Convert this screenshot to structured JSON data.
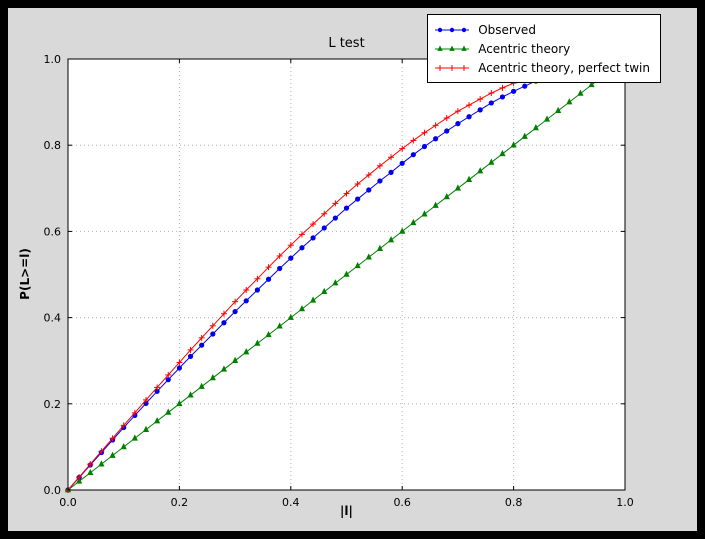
{
  "window": {
    "background": "#000000"
  },
  "chart_data": {
    "type": "line",
    "title": "L test",
    "xlabel": "|l|",
    "ylabel": "P(L>=l)",
    "xlim": [
      0.0,
      1.0
    ],
    "ylim": [
      0.0,
      1.0
    ],
    "grid": true,
    "grid_style": "dotted",
    "legend_position": "upper right",
    "colors": {
      "figure_bg": "#d9d9d9",
      "axes_bg": "#ffffff",
      "grid": "#b3b3b3",
      "spine": "#000000"
    },
    "xticks": {
      "values": [
        0.0,
        0.2,
        0.4,
        0.6,
        0.8,
        1.0
      ],
      "labels": [
        "0.0",
        "0.2",
        "0.4",
        "0.6",
        "0.8",
        "1.0"
      ]
    },
    "yticks": {
      "values": [
        0.0,
        0.2,
        0.4,
        0.6,
        0.8,
        1.0
      ],
      "labels": [
        "0.0",
        "0.2",
        "0.4",
        "0.6",
        "0.8",
        "1.0"
      ]
    },
    "series": [
      {
        "name": "Observed",
        "color": "#0000ee",
        "marker": "circle",
        "x": [
          0.0,
          0.02,
          0.04,
          0.06,
          0.08,
          0.1,
          0.12,
          0.14,
          0.16,
          0.18,
          0.2,
          0.22,
          0.24,
          0.26,
          0.28,
          0.3,
          0.32,
          0.34,
          0.36,
          0.38,
          0.4,
          0.42,
          0.44,
          0.46,
          0.48,
          0.5,
          0.52,
          0.54,
          0.56,
          0.58,
          0.6,
          0.62,
          0.64,
          0.66,
          0.68,
          0.7,
          0.72,
          0.74,
          0.76,
          0.78,
          0.8,
          0.82,
          0.84,
          0.86
        ],
        "y": [
          0.0,
          0.029,
          0.058,
          0.087,
          0.116,
          0.145,
          0.173,
          0.201,
          0.229,
          0.256,
          0.283,
          0.31,
          0.336,
          0.362,
          0.388,
          0.414,
          0.439,
          0.464,
          0.489,
          0.514,
          0.538,
          0.562,
          0.585,
          0.608,
          0.631,
          0.654,
          0.675,
          0.696,
          0.717,
          0.737,
          0.758,
          0.778,
          0.797,
          0.815,
          0.833,
          0.85,
          0.866,
          0.882,
          0.898,
          0.912,
          0.925,
          0.937,
          0.949,
          0.959
        ]
      },
      {
        "name": "Acentric theory",
        "color": "#008000",
        "marker": "triangle",
        "x": [
          0.0,
          0.02,
          0.04,
          0.06,
          0.08,
          0.1,
          0.12,
          0.14,
          0.16,
          0.18,
          0.2,
          0.22,
          0.24,
          0.26,
          0.28,
          0.3,
          0.32,
          0.34,
          0.36,
          0.38,
          0.4,
          0.42,
          0.44,
          0.46,
          0.48,
          0.5,
          0.52,
          0.54,
          0.56,
          0.58,
          0.6,
          0.62,
          0.64,
          0.66,
          0.68,
          0.7,
          0.72,
          0.74,
          0.76,
          0.78,
          0.8,
          0.82,
          0.84,
          0.86,
          0.88,
          0.9,
          0.92,
          0.94,
          0.96
        ],
        "y": [
          0.0,
          0.02,
          0.04,
          0.06,
          0.08,
          0.1,
          0.12,
          0.14,
          0.16,
          0.18,
          0.2,
          0.22,
          0.24,
          0.26,
          0.28,
          0.3,
          0.32,
          0.34,
          0.36,
          0.38,
          0.4,
          0.42,
          0.44,
          0.46,
          0.48,
          0.5,
          0.52,
          0.54,
          0.56,
          0.58,
          0.6,
          0.62,
          0.64,
          0.66,
          0.68,
          0.7,
          0.72,
          0.74,
          0.76,
          0.78,
          0.8,
          0.82,
          0.84,
          0.86,
          0.88,
          0.9,
          0.92,
          0.94,
          0.96
        ]
      },
      {
        "name": "Acentric theory, perfect twin",
        "color": "#ff0000",
        "marker": "plus",
        "x": [
          0.0,
          0.02,
          0.04,
          0.06,
          0.08,
          0.1,
          0.12,
          0.14,
          0.16,
          0.18,
          0.2,
          0.22,
          0.24,
          0.26,
          0.28,
          0.3,
          0.32,
          0.34,
          0.36,
          0.38,
          0.4,
          0.42,
          0.44,
          0.46,
          0.48,
          0.5,
          0.52,
          0.54,
          0.56,
          0.58,
          0.6,
          0.62,
          0.64,
          0.66,
          0.68,
          0.7,
          0.72,
          0.74,
          0.76,
          0.78,
          0.8,
          0.82,
          0.84,
          0.86
        ],
        "y": [
          0.0,
          0.03,
          0.06,
          0.09,
          0.12,
          0.15,
          0.179,
          0.209,
          0.238,
          0.267,
          0.296,
          0.325,
          0.353,
          0.381,
          0.409,
          0.437,
          0.464,
          0.49,
          0.517,
          0.543,
          0.568,
          0.593,
          0.617,
          0.641,
          0.665,
          0.688,
          0.71,
          0.731,
          0.752,
          0.772,
          0.792,
          0.811,
          0.829,
          0.846,
          0.863,
          0.879,
          0.893,
          0.907,
          0.921,
          0.933,
          0.944,
          0.954,
          0.964,
          0.972
        ]
      }
    ]
  }
}
